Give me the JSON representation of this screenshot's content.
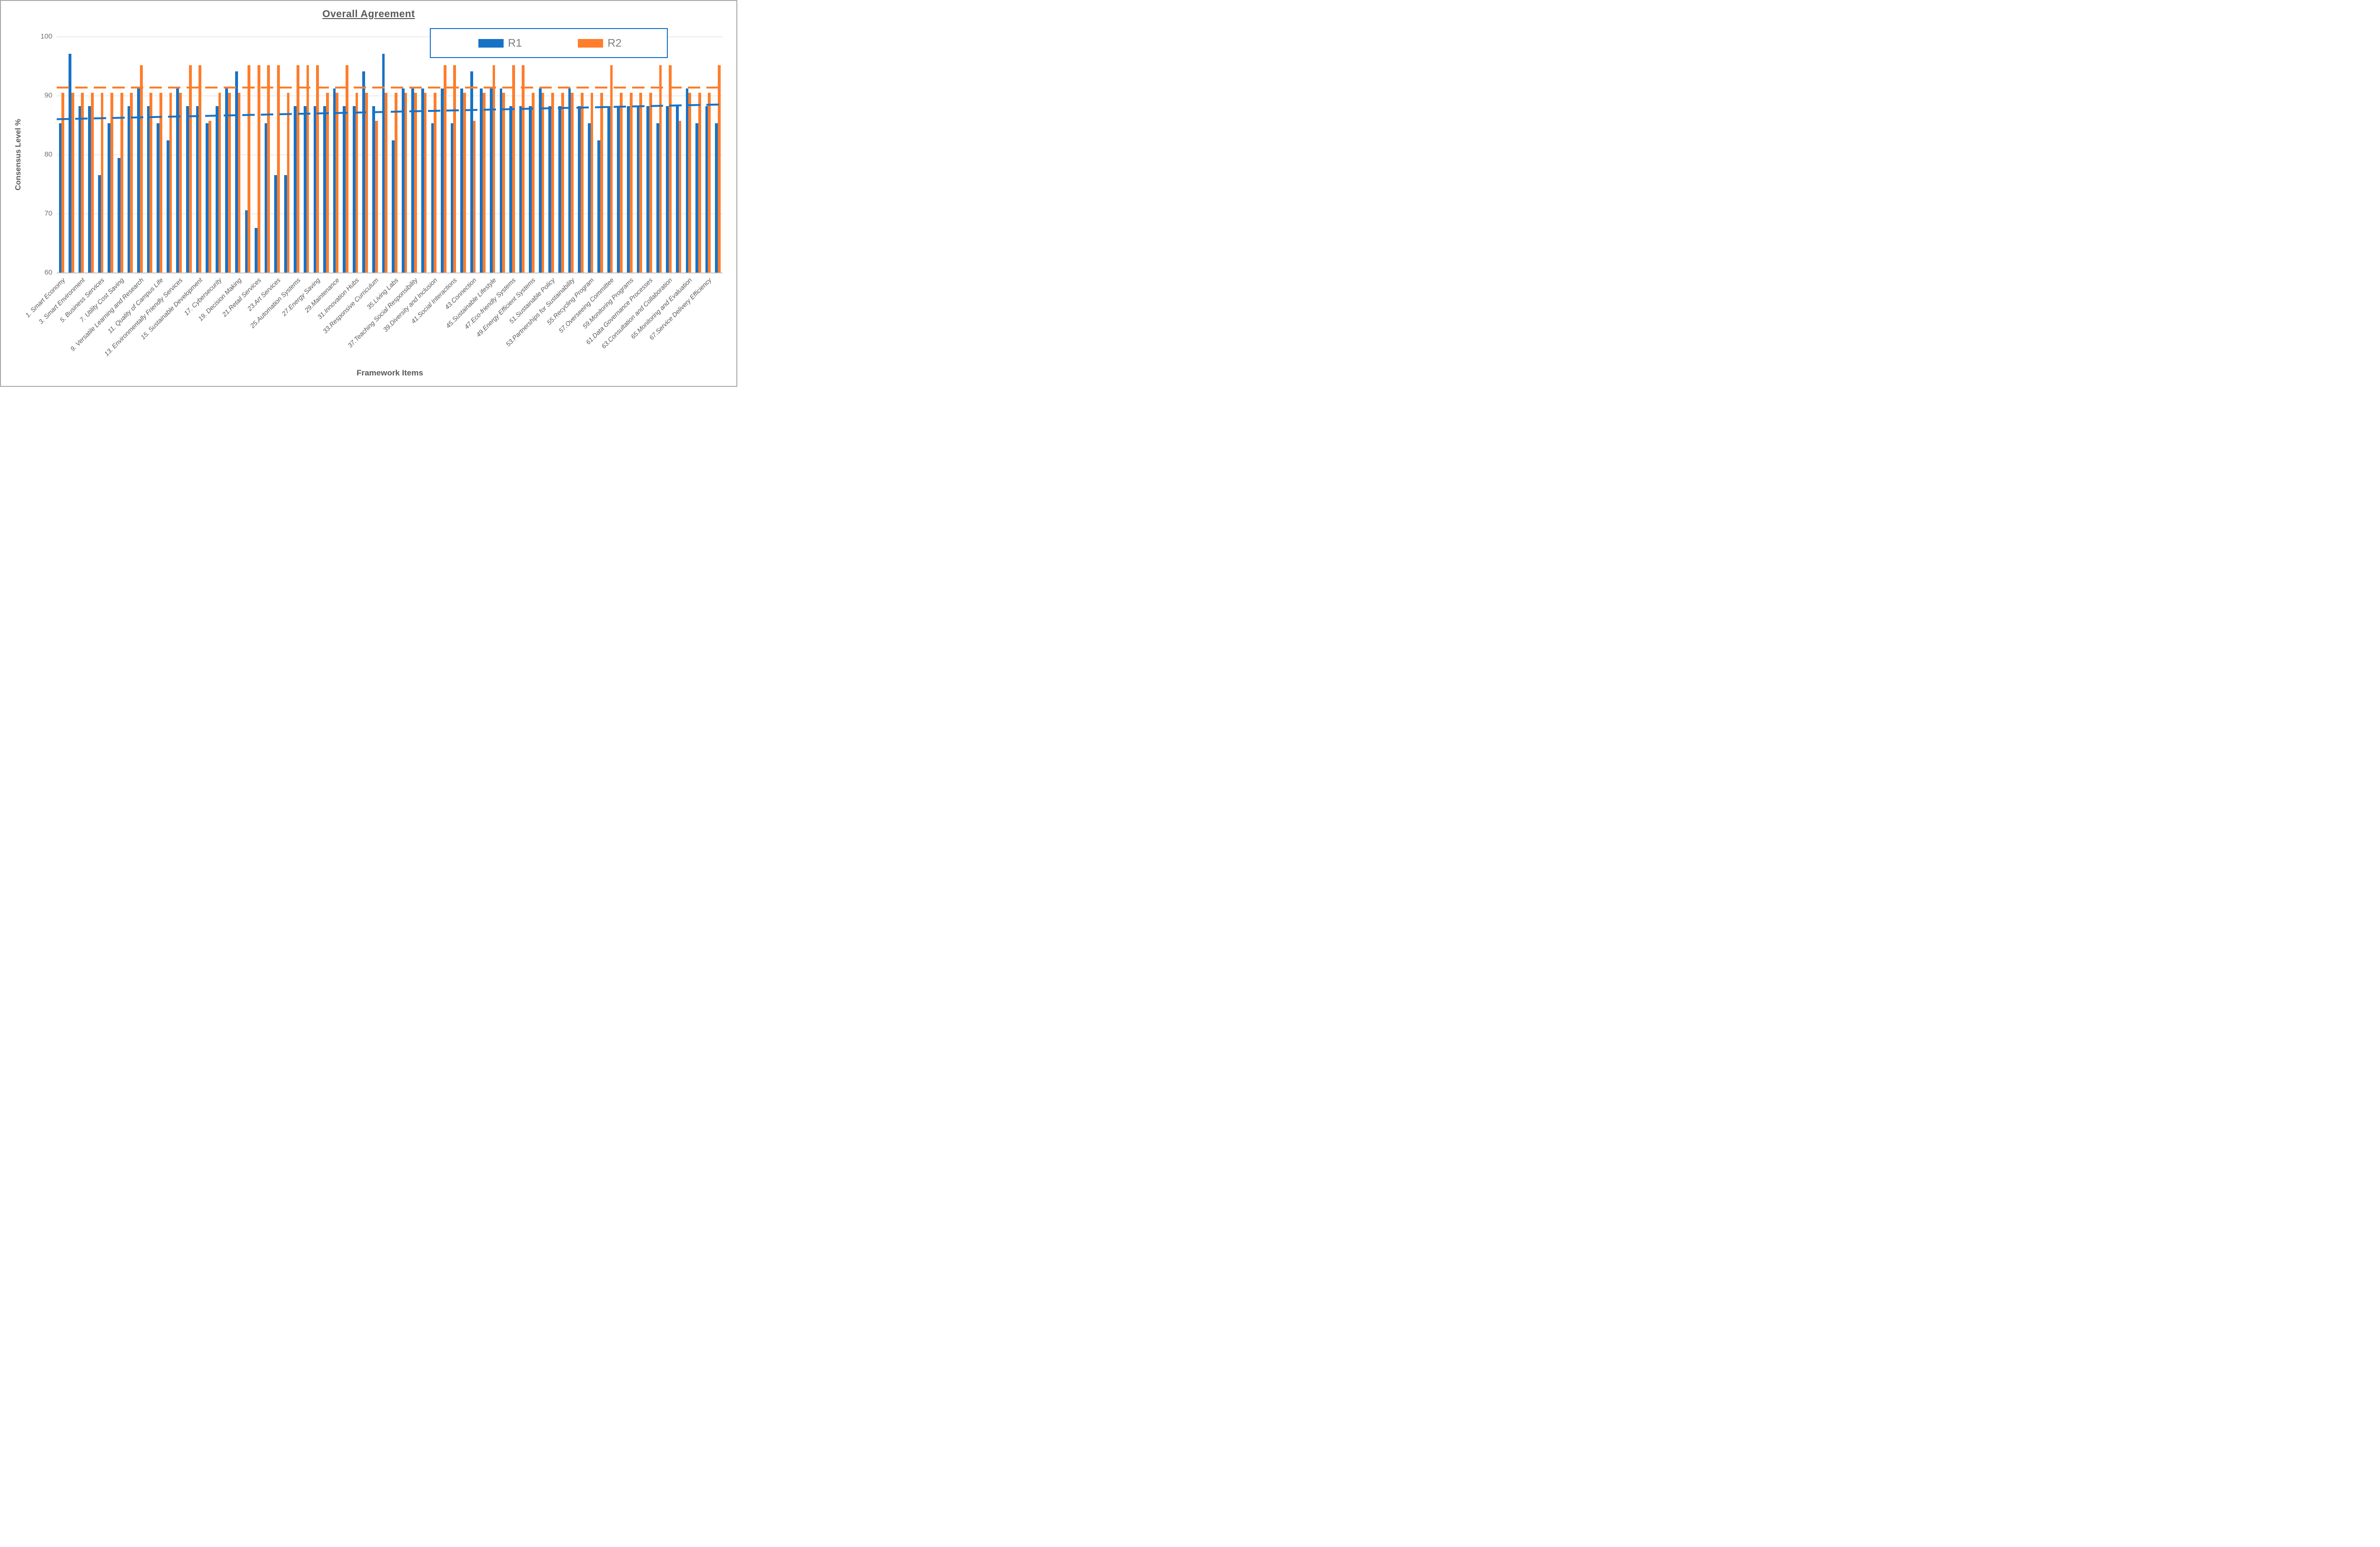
{
  "title": "Overall Agreement",
  "legend": {
    "r1": "R1",
    "r2": "R2",
    "position": "top-right-inside"
  },
  "axes": {
    "y_title": "Consensus Level %",
    "x_title": "Framework Items",
    "y_ticks": [
      100,
      90,
      80,
      70,
      60
    ],
    "y_min": 60,
    "y_max": 100,
    "grid": "horizontal"
  },
  "colors": {
    "r1": "#1772c6",
    "r2": "#ff7d2b",
    "title_text": "#595959",
    "tick_text": "#737373",
    "legend_text": "#7f7f7f",
    "legend_border": "#1772c6",
    "gridline": "#dbdbdb"
  },
  "chart_data": {
    "type": "bar",
    "title": "Overall Agreement",
    "xlabel": "Framework Items",
    "ylabel": "Consensus Level %",
    "ylim": [
      60,
      100
    ],
    "legend_position": "top-right",
    "grid": true,
    "categories": [
      "1. Smart Economy",
      "",
      "3. Smart Environment",
      "",
      "5. Business Services",
      "",
      "7. Utility Cost Saving",
      "",
      "9. Versatile Learning and Research",
      "",
      "11. Quality of Campus Life",
      "",
      "13. Environmentally Friendly Services",
      "",
      "15. Sustainable Development",
      "",
      "17. Cybersecurity",
      "",
      "19. Decision Making",
      "",
      "21.Retail Services",
      "",
      "23.Art Services",
      "",
      "25.Automation Systems",
      "",
      "27.Energy Saving",
      "",
      "29.Maintenance",
      "",
      "31.Innovation Hubs",
      "",
      "33.Responsive Curriculum",
      "",
      "35.Living Labs",
      "",
      "37.Teaching Social Responsibility",
      "",
      "39.Diversity and Inclusion",
      "",
      "41.Social Interactions",
      "",
      "43.Connection",
      "",
      "45.Sustainable Lifestyle",
      "",
      "47.Eco-friendly Systems",
      "",
      "49.Energy Efficient Systems",
      "",
      "51.Sustainable Policy",
      "",
      "53.Partnerships for Sustainability",
      "",
      "55.Recycling Program",
      "",
      "57.Overseeing Committee",
      "",
      "59.Monitoring Programs",
      "",
      "61.Data Governance Processes",
      "",
      "63.Consultation and Collaboration",
      "",
      "65.Monitoring and Evaluation",
      "",
      "67.Service Delivery Efficiency",
      ""
    ],
    "series": [
      {
        "name": "R1",
        "values": [
          85.3,
          97.1,
          88.2,
          88.2,
          76.5,
          85.3,
          79.4,
          88.2,
          91.2,
          88.2,
          85.3,
          82.4,
          91.2,
          88.2,
          88.2,
          85.3,
          88.2,
          91.2,
          94.1,
          70.6,
          67.6,
          85.3,
          76.5,
          76.5,
          88.2,
          88.2,
          88.2,
          88.2,
          91.2,
          88.2,
          88.2,
          94.1,
          88.2,
          97.1,
          82.4,
          91.2,
          91.2,
          91.2,
          85.3,
          91.2,
          85.3,
          91.2,
          94.1,
          91.2,
          91.2,
          91.2,
          88.2,
          88.2,
          88.2,
          91.2,
          88.2,
          88.2,
          91.2,
          88.2,
          85.3,
          82.4,
          88.2,
          88.2,
          88.2,
          88.2,
          88.2,
          85.3,
          88.2,
          88.2,
          91.2,
          85.3,
          88.2,
          85.3
        ]
      },
      {
        "name": "R2",
        "values": [
          90.5,
          90.5,
          90.5,
          90.5,
          90.5,
          90.5,
          90.5,
          90.5,
          95.2,
          90.5,
          90.5,
          90.5,
          90.5,
          95.2,
          95.2,
          85.7,
          90.5,
          90.5,
          90.5,
          95.2,
          95.2,
          95.2,
          95.2,
          90.5,
          95.2,
          95.2,
          95.2,
          90.5,
          90.5,
          95.2,
          90.5,
          90.5,
          85.7,
          90.5,
          90.5,
          90.5,
          90.5,
          90.5,
          90.5,
          95.2,
          95.2,
          90.5,
          85.7,
          90.5,
          95.2,
          90.5,
          95.2,
          95.2,
          90.5,
          90.5,
          90.5,
          90.5,
          90.5,
          90.5,
          90.5,
          90.5,
          95.2,
          90.5,
          90.5,
          90.5,
          90.5,
          95.2,
          95.2,
          85.7,
          90.5,
          90.5,
          90.5,
          95.2
        ]
      }
    ],
    "trendlines": [
      {
        "series": "R1",
        "style": "dashed",
        "start_value": 86.0,
        "end_value": 88.5
      },
      {
        "series": "R2",
        "style": "dashed",
        "start_value": 91.4,
        "end_value": 91.4
      }
    ]
  }
}
